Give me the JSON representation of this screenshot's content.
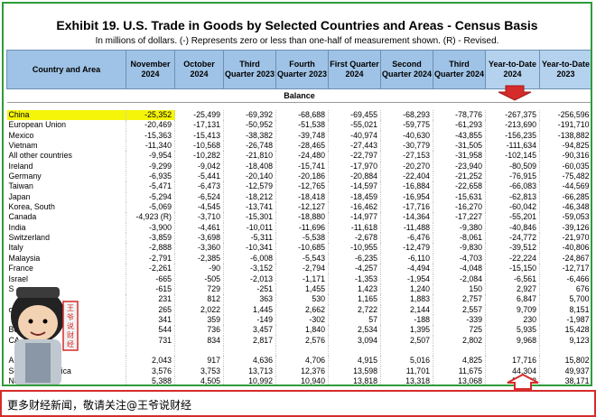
{
  "exhibit": {
    "title": "Exhibit 19. U.S. Trade in Goods by Selected Countries and Areas - Census Basis",
    "subtitle": "In millions of dollars. (-) Represents zero or less than one-half of measurement shown. (R) - Revised."
  },
  "table": {
    "columns": [
      {
        "key": "country",
        "label": "Country and Area"
      },
      {
        "key": "nov24",
        "label": "November 2024"
      },
      {
        "key": "oct24",
        "label": "October 2024"
      },
      {
        "key": "q3_23",
        "label": "Third Quarter 2023"
      },
      {
        "key": "q4_23",
        "label": "Fourth Quarter 2023"
      },
      {
        "key": "q1_24",
        "label": "First Quarter 2024"
      },
      {
        "key": "q2_24",
        "label": "Second Quarter 2024"
      },
      {
        "key": "q3_24",
        "label": "Third Quarter 2024"
      },
      {
        "key": "ytd24",
        "label": "Year-to-Date 2024"
      },
      {
        "key": "ytd23",
        "label": "Year-to-Date 2023"
      }
    ],
    "section_label": "Balance",
    "rows": [
      {
        "country": "China",
        "values": [
          "-25,352",
          "-25,499",
          "-69,392",
          "-68,688",
          "-69,455",
          "-68,293",
          "-78,776",
          "-267,375",
          "-256,596"
        ],
        "highlight": true
      },
      {
        "country": "European Union",
        "values": [
          "-20,469",
          "-17,131",
          "-50,952",
          "-51,538",
          "-55,021",
          "-59,775",
          "-61,293",
          "-213,690",
          "-191,710"
        ]
      },
      {
        "country": "Mexico",
        "values": [
          "-15,363",
          "-15,413",
          "-38,382",
          "-39,748",
          "-40,974",
          "-40,630",
          "-43,855",
          "-156,235",
          "-138,882"
        ]
      },
      {
        "country": "Vietnam",
        "values": [
          "-11,340",
          "-10,568",
          "-26,748",
          "-28,465",
          "-27,443",
          "-30,779",
          "-31,505",
          "-111,634",
          "-94,825"
        ]
      },
      {
        "country": "All other countries",
        "values": [
          "-9,954",
          "-10,282",
          "-21,810",
          "-24,480",
          "-22,797",
          "-27,153",
          "-31,958",
          "-102,145",
          "-90,316"
        ]
      },
      {
        "country": "Ireland",
        "values": [
          "-9,299",
          "-9,042",
          "-18,408",
          "-15,741",
          "-17,970",
          "-20,270",
          "-23,940",
          "-80,509",
          "-60,035"
        ]
      },
      {
        "country": "Germany",
        "values": [
          "-6,935",
          "-5,441",
          "-20,140",
          "-20,186",
          "-20,884",
          "-22,404",
          "-21,252",
          "-76,915",
          "-75,482"
        ]
      },
      {
        "country": "Taiwan",
        "values": [
          "-5,471",
          "-6,473",
          "-12,579",
          "-12,765",
          "-14,597",
          "-16,884",
          "-22,658",
          "-66,083",
          "-44,569"
        ]
      },
      {
        "country": "Japan",
        "values": [
          "-5,294",
          "-6,524",
          "-18,212",
          "-18,418",
          "-18,459",
          "-16,954",
          "-15,631",
          "-62,813",
          "-66,285"
        ]
      },
      {
        "country": "Korea, South",
        "values": [
          "-5,069",
          "-4,545",
          "-13,741",
          "-12,127",
          "-16,462",
          "-17,716",
          "-16,270",
          "-60,042",
          "-46,348"
        ]
      },
      {
        "country": "Canada",
        "values": [
          "-4,923 (R)",
          "-3,710",
          "-15,301",
          "-18,880",
          "-14,977",
          "-14,364",
          "-17,227",
          "-55,201",
          "-59,053"
        ]
      },
      {
        "country": "India",
        "values": [
          "-3,900",
          "-4,461",
          "-10,011",
          "-11,696",
          "-11,618",
          "-11,488",
          "-9,380",
          "-40,846",
          "-39,126"
        ]
      },
      {
        "country": "Switzerland",
        "values": [
          "-3,859",
          "-3,698",
          "-5,311",
          "-5,538",
          "-2,678",
          "-6,476",
          "-8,061",
          "-24,772",
          "-21,970"
        ]
      },
      {
        "country": "Italy",
        "values": [
          "-2,888",
          "-3,360",
          "-10,341",
          "-10,685",
          "-10,955",
          "-12,479",
          "-9,830",
          "-39,512",
          "-40,806"
        ]
      },
      {
        "country": "Malaysia",
        "values": [
          "-2,791",
          "-2,385",
          "-6,008",
          "-5,543",
          "-6,235",
          "-6,110",
          "-4,703",
          "-22,224",
          "-24,867"
        ]
      },
      {
        "country": "France",
        "values": [
          "-2,261",
          "-90",
          "-3,152",
          "-2,794",
          "-4,257",
          "-4,494",
          "-4,048",
          "-15,150",
          "-12,717"
        ]
      },
      {
        "country": "Israel",
        "values": [
          "-665",
          "-505",
          "-2,013",
          "-1,171",
          "-1,353",
          "-1,954",
          "-2,084",
          "-6,561",
          "-6,466"
        ]
      },
      {
        "country": "S",
        "values": [
          "-615",
          "729",
          "-251",
          "1,455",
          "1,423",
          "1,240",
          "150",
          "2,927",
          "676"
        ]
      },
      {
        "country": "",
        "values": [
          "231",
          "812",
          "363",
          "530",
          "1,165",
          "1,883",
          "2,757",
          "6,847",
          "5,700"
        ]
      },
      {
        "country": "om",
        "values": [
          "265",
          "2,022",
          "1,445",
          "2,662",
          "2,722",
          "2,144",
          "2,557",
          "9,709",
          "8,151"
        ]
      },
      {
        "country": "",
        "values": [
          "341",
          "359",
          "-149",
          "-302",
          "57",
          "-188",
          "-339",
          "230",
          "-1,987"
        ]
      },
      {
        "country": "Belg",
        "values": [
          "544",
          "736",
          "3,457",
          "1,840",
          "2,534",
          "1,395",
          "725",
          "5,935",
          "15,428"
        ]
      },
      {
        "country": "CA",
        "values": [
          "731",
          "834",
          "2,817",
          "2,576",
          "3,094",
          "2,507",
          "2,802",
          "9,968",
          "9,123"
        ]
      },
      {
        "country": "",
        "values": [
          "",
          "",
          "",
          "",
          "",
          "",
          "",
          "",
          ""
        ]
      },
      {
        "country": "Au",
        "values": [
          "2,043",
          "917",
          "4,636",
          "4,706",
          "4,915",
          "5,016",
          "4,825",
          "17,716",
          "15,802"
        ]
      },
      {
        "country": "South and Central America",
        "display": "Sou  ntral America",
        "values": [
          "3,576",
          "3,753",
          "13,713",
          "12,376",
          "13,598",
          "11,701",
          "11,675",
          "44,304",
          "49,937"
        ]
      },
      {
        "country": "Neth",
        "values": [
          "5,388",
          "4,505",
          "10,992",
          "10,940",
          "13,818",
          "13,318",
          "13,068",
          "50,473",
          "38,171"
        ]
      }
    ]
  },
  "banner": {
    "text": "更多财经新闻，敬请关注@王爷说财经"
  },
  "seal": {
    "text": "王爷说财经"
  },
  "colors": {
    "header_bg": "#9fc3e6",
    "highlight": "#f5f50a",
    "frame": "#2e9c3a",
    "banner_border": "#d62b2b",
    "arrow": "#d62b2b"
  },
  "icons": {
    "down_arrow": "red-down-arrow-icon",
    "up_arrow": "red-up-arrow-icon",
    "figure": "cartoon-figure-icon"
  }
}
